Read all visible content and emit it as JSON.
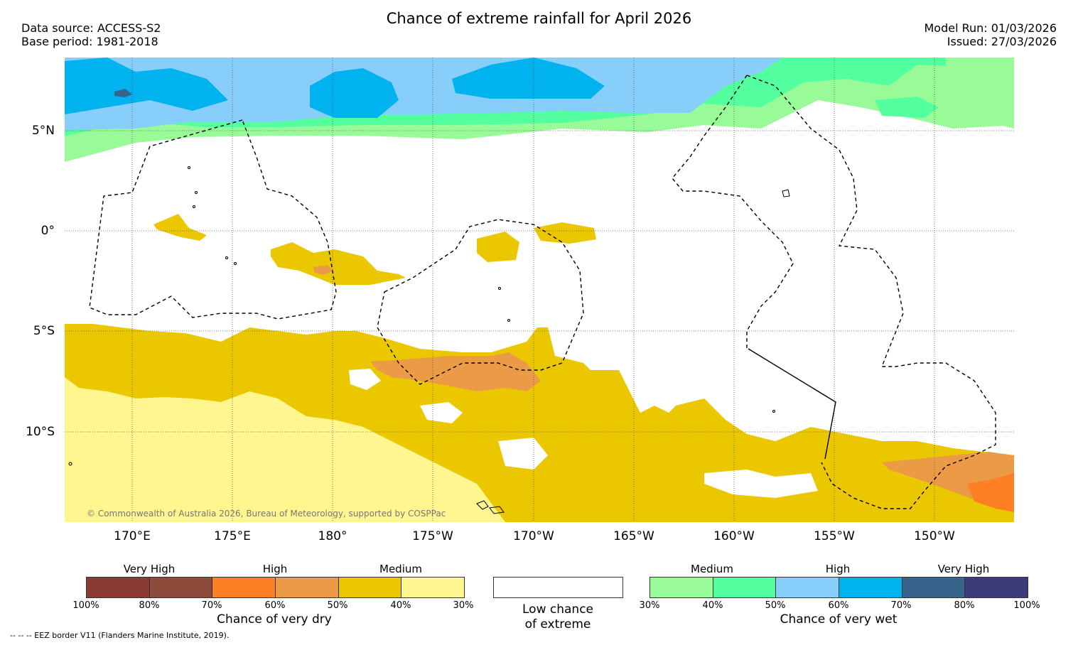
{
  "header": {
    "title": "Chance of extreme rainfall for April 2026",
    "data_source": "Data source: ACCESS-S2",
    "base_period": "Base period: 1981-2018",
    "model_run": "Model Run: 01/03/2026",
    "issued": "Issued: 27/03/2026"
  },
  "map": {
    "lat_labels": [
      "5°N",
      "0°",
      "5°S",
      "10°S"
    ],
    "lon_labels": [
      "170°E",
      "175°E",
      "180°",
      "175°W",
      "170°W",
      "165°W",
      "160°W",
      "155°W",
      "150°W"
    ],
    "copyright": "© Commonwealth of Australia 2026, Bureau of Meteorology, supported by COSPPac"
  },
  "legend": {
    "dry": {
      "categories": [
        "Very High",
        "High",
        "Medium"
      ],
      "ticks": [
        "100%",
        "80%",
        "70%",
        "60%",
        "50%",
        "40%",
        "30%"
      ],
      "colors": [
        "#8b3a32",
        "#8b4a3a",
        "#ff7f24",
        "#eb9a45",
        "#ebc700",
        "#fff68f"
      ],
      "title": "Chance of very dry"
    },
    "neutral": {
      "line1": "Low chance",
      "line2": "of extreme"
    },
    "wet": {
      "categories": [
        "Medium",
        "High",
        "Very High"
      ],
      "ticks": [
        "30%",
        "40%",
        "50%",
        "60%",
        "70%",
        "80%",
        "100%"
      ],
      "colors": [
        "#98fb98",
        "#54ff9f",
        "#87cefa",
        "#00b2ee",
        "#36648b",
        "#3d3b7a"
      ],
      "title": "Chance of very wet"
    }
  },
  "footnote": "-- -- -- EEZ border V11 (Flanders Marine Institute, 2019)."
}
